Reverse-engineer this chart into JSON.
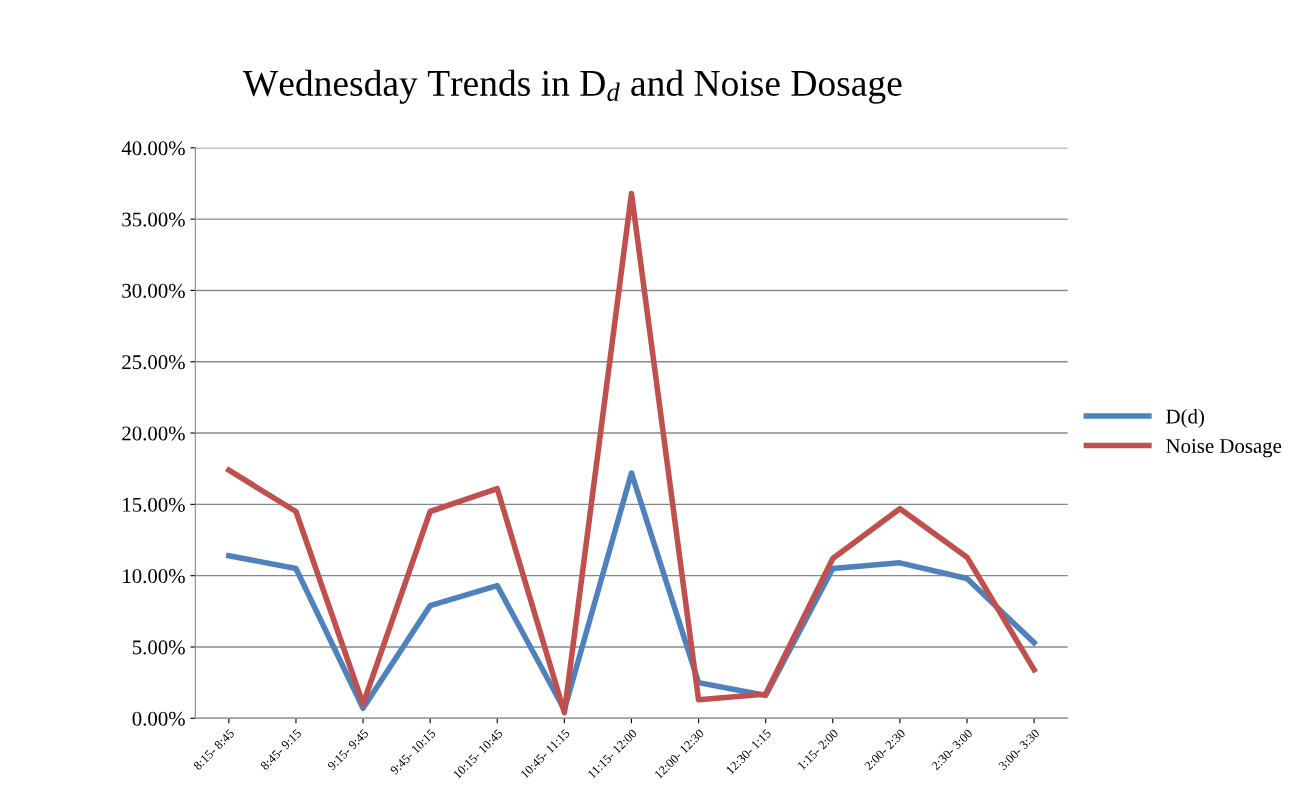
{
  "chart_data": {
    "type": "line",
    "title": "Wednesday Trends in D$_{d}$ and Noise Dosage",
    "categories": [
      "8:15- 8:45",
      "8:45- 9:15",
      "9:15- 9:45",
      "9:45- 10:15",
      "10:15- 10:45",
      "10:45- 11:15",
      "11:15- 12:00",
      "12:00- 12:30",
      "12:30- 1:15",
      "1:15- 2:00",
      "2:00- 2:30",
      "2:30- 3:00",
      "3:00- 3:30"
    ],
    "series": [
      {
        "name": "D(d)",
        "color": "#4f81bd",
        "values": [
          11.4,
          10.5,
          0.7,
          7.9,
          9.3,
          0.6,
          17.2,
          2.5,
          1.6,
          10.5,
          10.9,
          9.8,
          5.3
        ]
      },
      {
        "name": "Noise Dosage",
        "color": "#c0504d",
        "values": [
          17.4,
          14.5,
          1.0,
          14.5,
          16.1,
          0.4,
          36.8,
          1.3,
          1.7,
          11.2,
          14.7,
          11.3,
          3.4
        ]
      }
    ],
    "ylim": [
      0,
      40
    ],
    "yticks": [
      {
        "value": 0,
        "label": "0.00%"
      },
      {
        "value": 5,
        "label": "5.00%"
      },
      {
        "value": 10,
        "label": "10.00%"
      },
      {
        "value": 15,
        "label": "15.00%"
      },
      {
        "value": 20,
        "label": "20.00%"
      },
      {
        "value": 25,
        "label": "25.00%"
      },
      {
        "value": 30,
        "label": "30.00%"
      },
      {
        "value": 35,
        "label": "35.00%"
      },
      {
        "value": 40,
        "label": "40.00%"
      }
    ],
    "grid": "y",
    "legend": "right",
    "marker": "none",
    "line_style": "solid"
  }
}
